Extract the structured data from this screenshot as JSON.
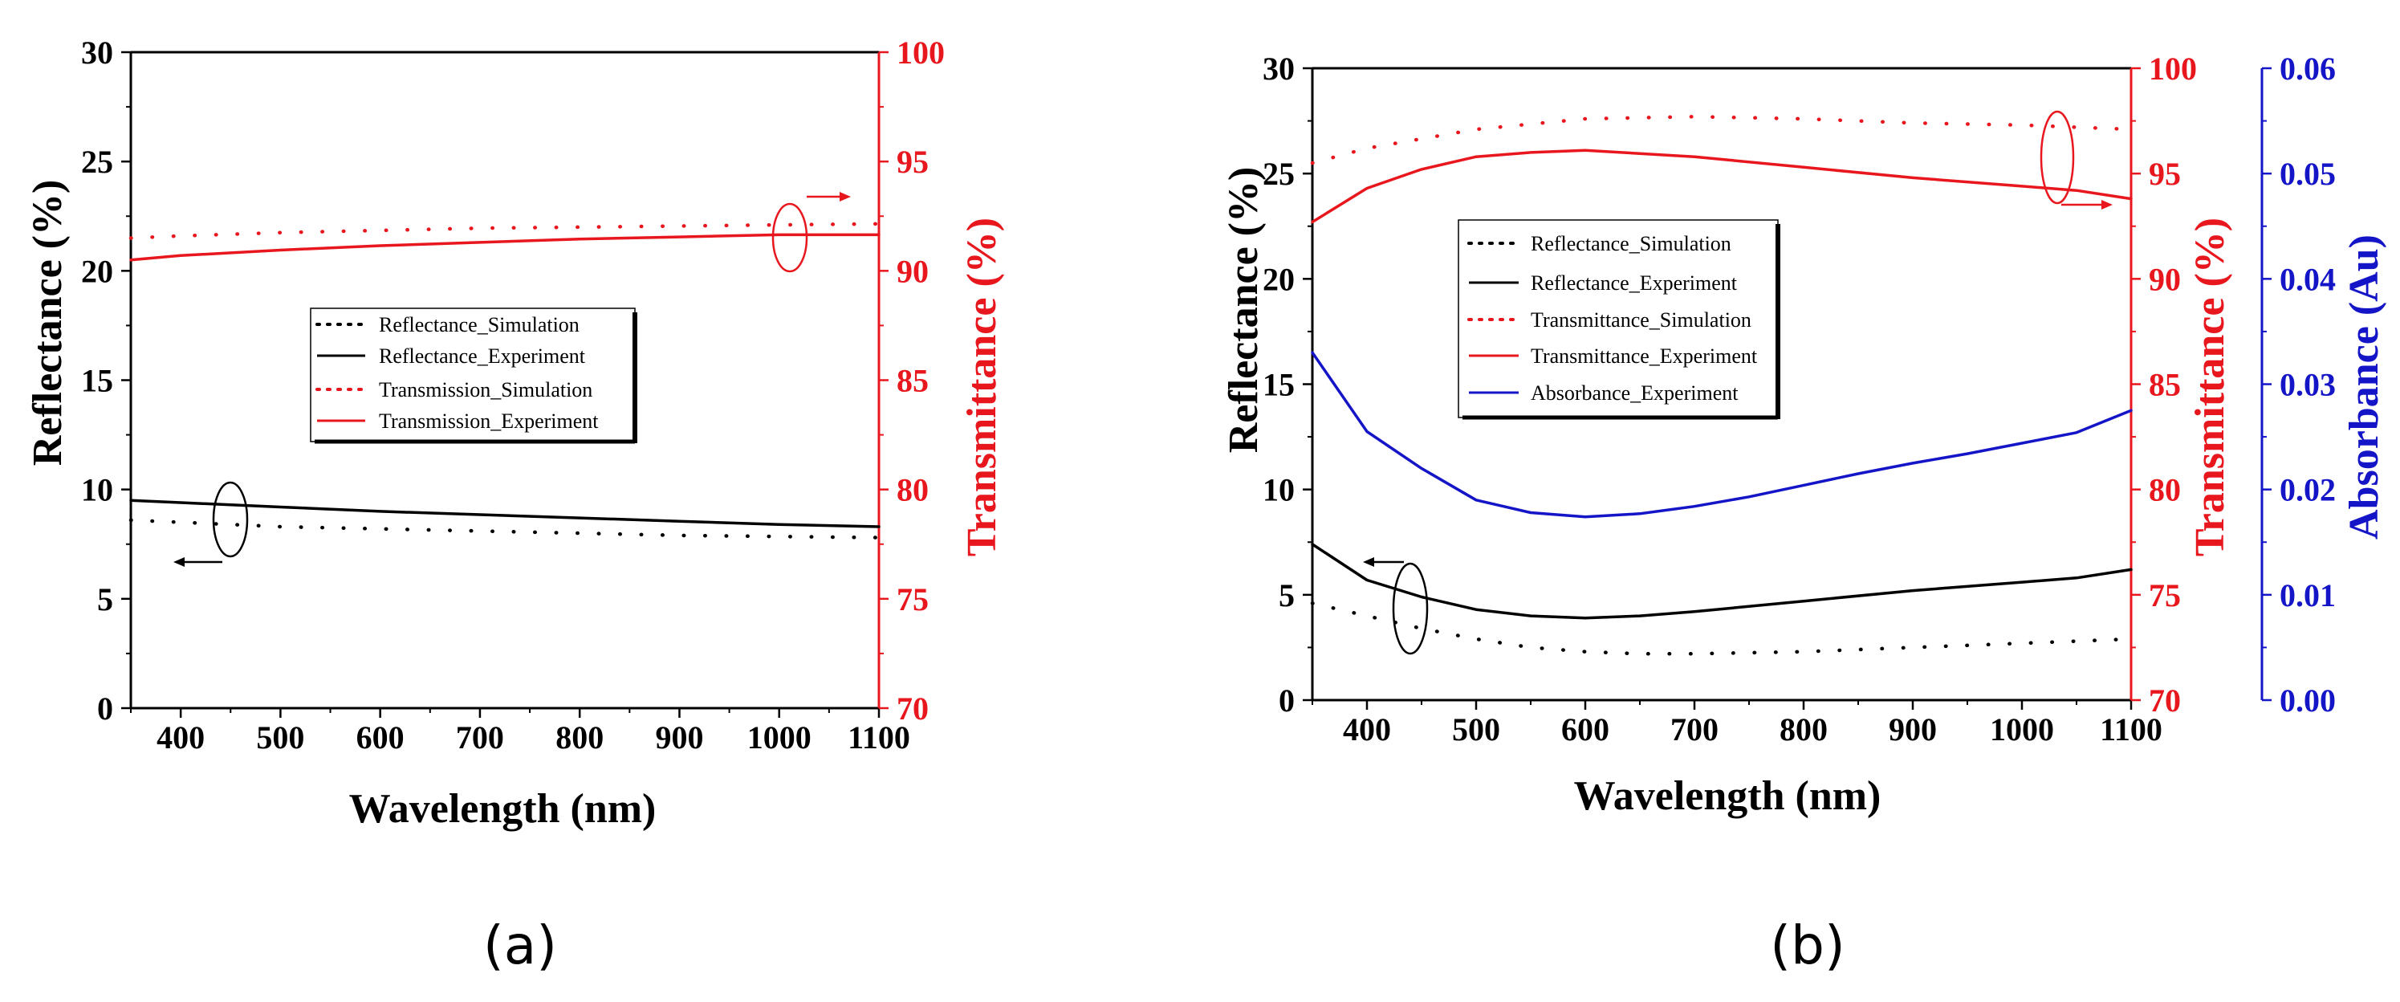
{
  "chart_data": [
    {
      "type": "line",
      "panel_label": "(a)",
      "xlabel": "Wavelength (nm)",
      "xlim": [
        350,
        1100
      ],
      "xticks": [
        400,
        500,
        600,
        700,
        800,
        900,
        1000,
        1100
      ],
      "y_left": {
        "label": "Reflectance (%)",
        "lim": [
          0,
          30
        ],
        "ticks": [
          0,
          5,
          10,
          15,
          20,
          25,
          30
        ],
        "color": "#000000"
      },
      "y_right": {
        "label": "Transmittance (%)",
        "lim": [
          70,
          100
        ],
        "ticks": [
          70,
          75,
          80,
          85,
          90,
          95,
          100
        ],
        "color": "#e8171e"
      },
      "legend": [
        "Reflectance_Simulation",
        "Reflectance_Experiment",
        "Transmission_Simulation",
        "Transmission_Experiment"
      ],
      "series": [
        {
          "name": "Reflectance_Simulation",
          "axis": "left",
          "style": "dotted",
          "color": "#000000",
          "x": [
            350,
            400,
            500,
            600,
            700,
            800,
            900,
            1000,
            1100
          ],
          "values": [
            8.6,
            8.5,
            8.3,
            8.2,
            8.1,
            8.0,
            7.9,
            7.85,
            7.8
          ]
        },
        {
          "name": "Reflectance_Experiment",
          "axis": "left",
          "style": "solid",
          "color": "#000000",
          "x": [
            350,
            400,
            500,
            600,
            700,
            800,
            900,
            1000,
            1100
          ],
          "values": [
            9.5,
            9.4,
            9.2,
            9.0,
            8.85,
            8.7,
            8.55,
            8.4,
            8.3
          ]
        },
        {
          "name": "Transmission_Simulation",
          "axis": "right",
          "style": "dotted",
          "color": "#e8171e",
          "x": [
            350,
            400,
            500,
            600,
            700,
            800,
            900,
            1000,
            1100
          ],
          "values": [
            91.5,
            91.6,
            91.75,
            91.85,
            91.95,
            92.0,
            92.05,
            92.1,
            92.15
          ]
        },
        {
          "name": "Transmission_Experiment",
          "axis": "right",
          "style": "solid",
          "color": "#e8171e",
          "x": [
            350,
            400,
            500,
            600,
            700,
            800,
            900,
            1000,
            1100
          ],
          "values": [
            90.5,
            90.7,
            90.95,
            91.15,
            91.3,
            91.45,
            91.55,
            91.65,
            91.65
          ]
        }
      ]
    },
    {
      "type": "line",
      "panel_label": "(b)",
      "xlabel": "Wavelength (nm)",
      "xlim": [
        350,
        1100
      ],
      "xticks": [
        400,
        500,
        600,
        700,
        800,
        900,
        1000,
        1100
      ],
      "y_left": {
        "label": "Reflectance (%)",
        "lim": [
          0,
          30
        ],
        "ticks": [
          0,
          5,
          10,
          15,
          20,
          25,
          30
        ],
        "color": "#000000"
      },
      "y_right": {
        "label": "Transmittance (%)",
        "lim": [
          70,
          100
        ],
        "ticks": [
          70,
          75,
          80,
          85,
          90,
          95,
          100
        ],
        "color": "#e8171e"
      },
      "y_right2": {
        "label": "Absorbance (Au)",
        "lim": [
          0.0,
          0.06
        ],
        "ticks": [
          "0.00",
          "0.01",
          "0.02",
          "0.03",
          "0.04",
          "0.05",
          "0.06"
        ],
        "color": "#1515c8"
      },
      "legend": [
        "Reflectance_Simulation",
        "Reflectance_Experiment",
        "Transmittance_Simulation",
        "Transmittance_Experiment",
        "Absorbance_Experiment"
      ],
      "series": [
        {
          "name": "Reflectance_Simulation",
          "axis": "left",
          "style": "dotted",
          "color": "#000000",
          "x": [
            350,
            400,
            450,
            500,
            550,
            600,
            650,
            700,
            800,
            900,
            1000,
            1100
          ],
          "values": [
            4.6,
            4.0,
            3.4,
            2.9,
            2.5,
            2.3,
            2.2,
            2.2,
            2.3,
            2.5,
            2.7,
            2.9
          ]
        },
        {
          "name": "Reflectance_Experiment",
          "axis": "left",
          "style": "solid",
          "color": "#000000",
          "x": [
            350,
            400,
            450,
            500,
            550,
            600,
            650,
            700,
            800,
            900,
            1000,
            1050,
            1100
          ],
          "values": [
            7.4,
            5.7,
            4.9,
            4.3,
            4.0,
            3.9,
            4.0,
            4.2,
            4.7,
            5.2,
            5.6,
            5.8,
            6.2
          ]
        },
        {
          "name": "Transmittance_Simulation",
          "axis": "right",
          "style": "dotted",
          "color": "#e8171e",
          "x": [
            350,
            400,
            500,
            600,
            700,
            800,
            900,
            1000,
            1100
          ],
          "values": [
            95.5,
            96.2,
            97.1,
            97.6,
            97.7,
            97.6,
            97.4,
            97.3,
            97.1
          ]
        },
        {
          "name": "Transmittance_Experiment",
          "axis": "right",
          "style": "solid",
          "color": "#e8171e",
          "x": [
            350,
            400,
            450,
            500,
            550,
            600,
            700,
            800,
            900,
            1000,
            1050,
            1100
          ],
          "values": [
            92.7,
            94.3,
            95.2,
            95.8,
            96.0,
            96.1,
            95.8,
            95.3,
            94.8,
            94.4,
            94.2,
            93.8
          ]
        },
        {
          "name": "Absorbance_Experiment",
          "axis": "right2",
          "style": "solid",
          "color": "#1515c8",
          "x": [
            350,
            400,
            450,
            500,
            550,
            600,
            650,
            700,
            750,
            800,
            850,
            900,
            950,
            1000,
            1050,
            1100
          ],
          "values": [
            0.033,
            0.0255,
            0.022,
            0.019,
            0.0178,
            0.0174,
            0.0177,
            0.0184,
            0.0193,
            0.0204,
            0.0215,
            0.0225,
            0.0234,
            0.0244,
            0.0254,
            0.0275
          ]
        }
      ]
    }
  ]
}
